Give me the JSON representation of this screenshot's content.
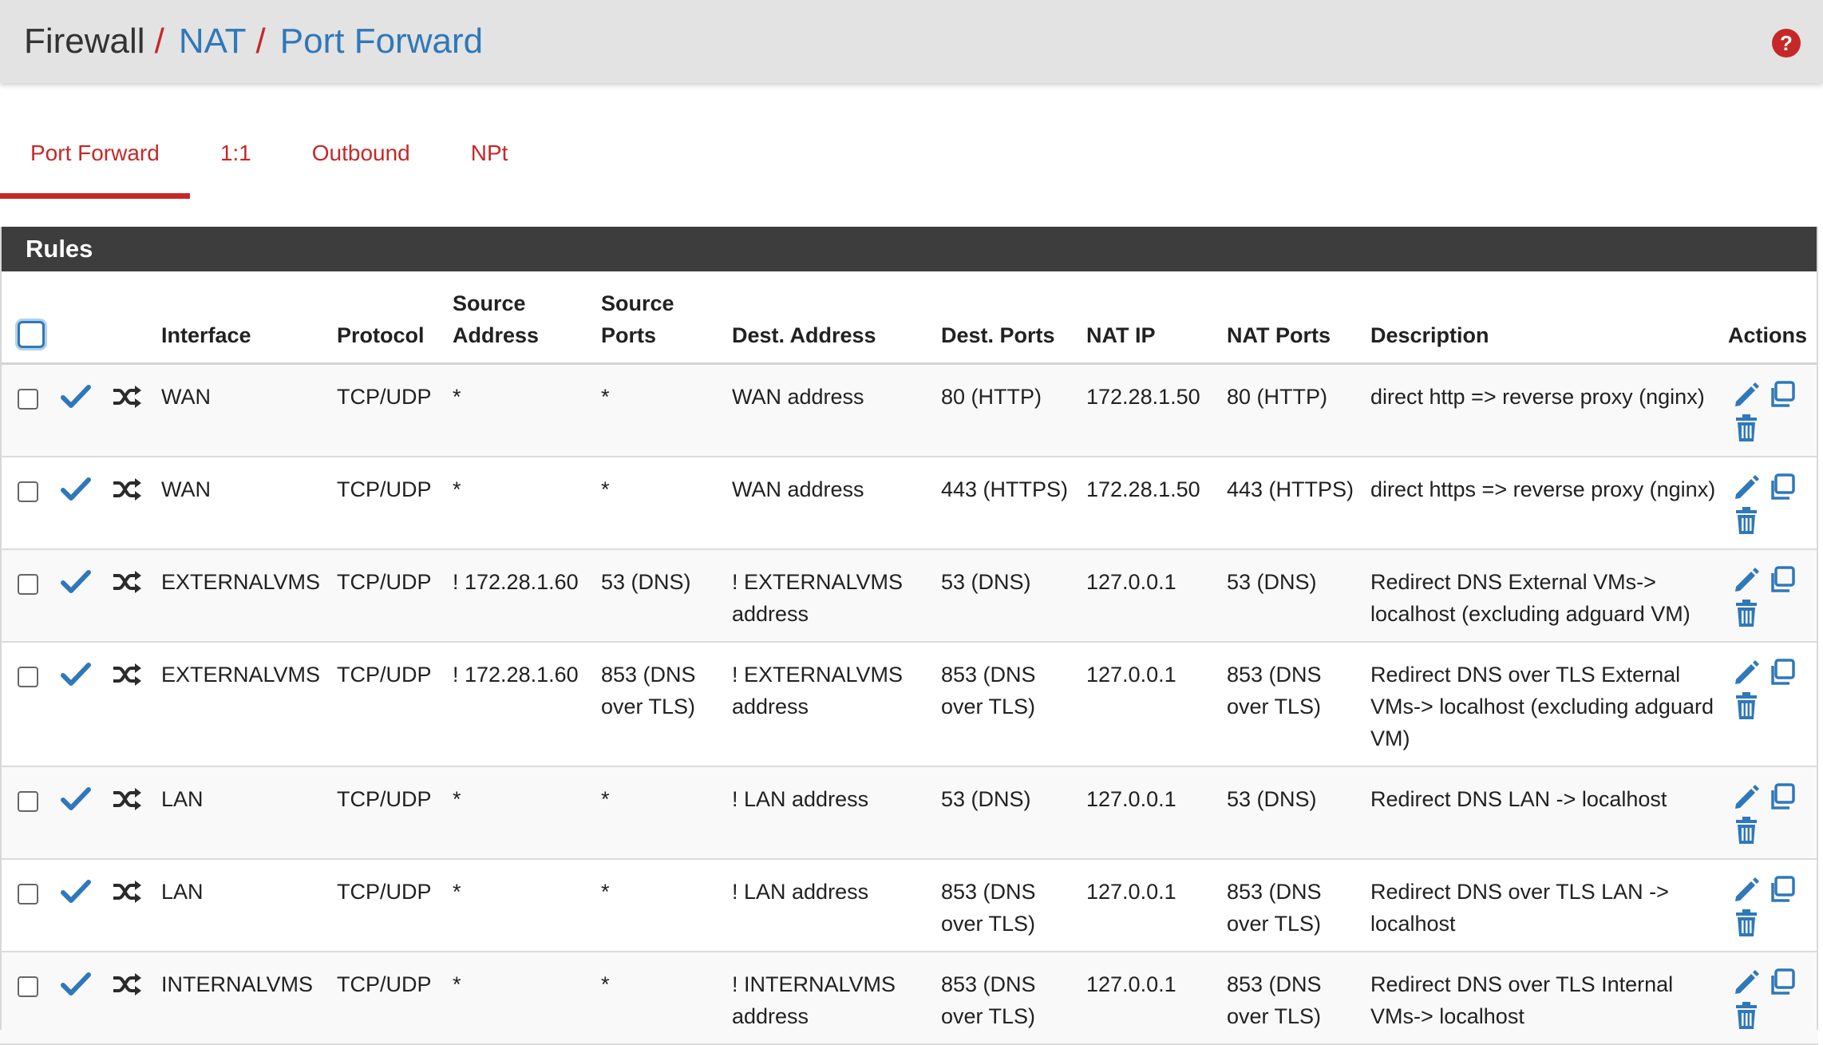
{
  "breadcrumb": {
    "items": [
      "Firewall",
      "NAT",
      "Port Forward"
    ],
    "separator": "/"
  },
  "help_icon": "question-circle-icon",
  "tabs": [
    "Port Forward",
    "1:1",
    "Outbound",
    "NPt"
  ],
  "active_tab": "Port Forward",
  "panel_title": "Rules",
  "columns": {
    "interface": "Interface",
    "protocol": "Protocol",
    "source_address": "Source Address",
    "source_ports": "Source Ports",
    "dest_address": "Dest. Address",
    "dest_ports": "Dest. Ports",
    "nat_ip": "NAT IP",
    "nat_ports": "NAT Ports",
    "description": "Description",
    "actions": "Actions"
  },
  "rows": [
    {
      "interface": "WAN",
      "protocol": "TCP/UDP",
      "source_address": "*",
      "source_ports": "*",
      "dest_address": "WAN address",
      "dest_ports": "80 (HTTP)",
      "nat_ip": "172.28.1.50",
      "nat_ports": "80 (HTTP)",
      "description": "direct http => reverse proxy (nginx)"
    },
    {
      "interface": "WAN",
      "protocol": "TCP/UDP",
      "source_address": "*",
      "source_ports": "*",
      "dest_address": "WAN address",
      "dest_ports": "443 (HTTPS)",
      "nat_ip": "172.28.1.50",
      "nat_ports": "443 (HTTPS)",
      "description": "direct https => reverse proxy (nginx)"
    },
    {
      "interface": "EXTERNALVMS",
      "protocol": "TCP/UDP",
      "source_address": "! 172.28.1.60",
      "source_ports": "53 (DNS)",
      "dest_address": "! EXTERNALVMS address",
      "dest_ports": "53 (DNS)",
      "nat_ip": "127.0.0.1",
      "nat_ports": "53 (DNS)",
      "description": "Redirect DNS External VMs-> localhost (excluding adguard VM)"
    },
    {
      "interface": "EXTERNALVMS",
      "protocol": "TCP/UDP",
      "source_address": "! 172.28.1.60",
      "source_ports": "853 (DNS over TLS)",
      "dest_address": "! EXTERNALVMS address",
      "dest_ports": "853 (DNS over TLS)",
      "nat_ip": "127.0.0.1",
      "nat_ports": "853 (DNS over TLS)",
      "description": "Redirect DNS over TLS External VMs-> localhost (excluding adguard VM)"
    },
    {
      "interface": "LAN",
      "protocol": "TCP/UDP",
      "source_address": "*",
      "source_ports": "*",
      "dest_address": "! LAN address",
      "dest_ports": "53 (DNS)",
      "nat_ip": "127.0.0.1",
      "nat_ports": "53 (DNS)",
      "description": "Redirect DNS LAN -> localhost"
    },
    {
      "interface": "LAN",
      "protocol": "TCP/UDP",
      "source_address": "*",
      "source_ports": "*",
      "dest_address": "! LAN address",
      "dest_ports": "853 (DNS over TLS)",
      "nat_ip": "127.0.0.1",
      "nat_ports": "853 (DNS over TLS)",
      "description": "Redirect DNS over TLS LAN -> localhost"
    },
    {
      "interface": "INTERNALVMS",
      "protocol": "TCP/UDP",
      "source_address": "*",
      "source_ports": "*",
      "dest_address": "! INTERNALVMS address",
      "dest_ports": "853 (DNS over TLS)",
      "nat_ip": "127.0.0.1",
      "nat_ports": "853 (DNS over TLS)",
      "description": "Redirect DNS over TLS Internal VMs-> localhost"
    }
  ],
  "row_icons": [
    "check-icon",
    "shuffle-icon"
  ],
  "action_icons": [
    "edit-pencil-icon",
    "copy-icon",
    "delete-trash-icon"
  ],
  "colors": {
    "accent_red": "#c62828",
    "link_blue": "#2f78b9",
    "panel_header": "#3d3d3d",
    "header_bg": "#e3e3e3"
  }
}
